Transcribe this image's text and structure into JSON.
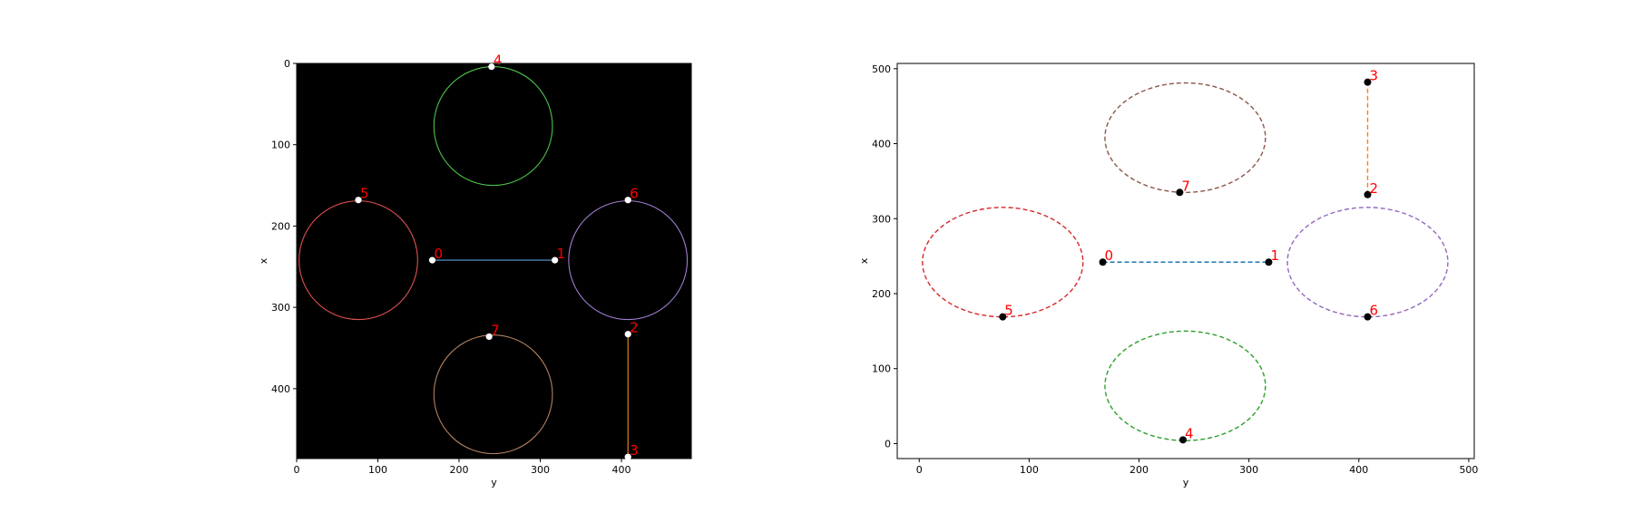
{
  "chart_data": [
    {
      "type": "scatter",
      "variant": "image-overlay",
      "background": "#000000",
      "xlabel": "y",
      "ylabel": "x",
      "xlim": [
        0,
        486
      ],
      "ylim": [
        486,
        0
      ],
      "yaxis_inverted": true,
      "xticks": [
        0,
        100,
        200,
        300,
        400
      ],
      "yticks": [
        0,
        100,
        200,
        300,
        400
      ],
      "point_color": "#ffffff",
      "label_color": "#ff0000",
      "circles": [
        {
          "name": "4",
          "cx": 242,
          "cy": 77,
          "r": 73,
          "color": "#4cc44c"
        },
        {
          "name": "5",
          "cx": 76,
          "cy": 242,
          "r": 73,
          "color": "#e0504f"
        },
        {
          "name": "6",
          "cx": 408,
          "cy": 242,
          "r": 73,
          "color": "#a07dd0"
        },
        {
          "name": "7",
          "cx": 242,
          "cy": 407,
          "r": 73,
          "color": "#b08060"
        }
      ],
      "segments": [
        {
          "from": "0",
          "to": "1",
          "color": "#5aa0d8"
        },
        {
          "from": "2",
          "to": "3",
          "color": "#f0902c"
        }
      ],
      "points": [
        {
          "label": "0",
          "x": 167,
          "y": 242
        },
        {
          "label": "1",
          "x": 318,
          "y": 242
        },
        {
          "label": "2",
          "x": 408,
          "y": 333
        },
        {
          "label": "3",
          "x": 408,
          "y": 484
        },
        {
          "label": "4",
          "x": 240,
          "y": 4
        },
        {
          "label": "5",
          "x": 76,
          "y": 168
        },
        {
          "label": "6",
          "x": 408,
          "y": 168
        },
        {
          "label": "7",
          "x": 237,
          "y": 336
        }
      ]
    },
    {
      "type": "scatter",
      "variant": "plot",
      "background": "#ffffff",
      "xlabel": "y",
      "ylabel": "x",
      "xlim": [
        -20,
        505
      ],
      "ylim": [
        -20,
        507
      ],
      "xticks": [
        0,
        100,
        200,
        300,
        400,
        500
      ],
      "yticks": [
        0,
        100,
        200,
        300,
        400,
        500
      ],
      "point_color": "#000000",
      "label_color": "#ff0000",
      "circles": [
        {
          "name": "7",
          "cx": 242,
          "cy": 408,
          "r": 73,
          "color": "#8c564b"
        },
        {
          "name": "5",
          "cx": 76,
          "cy": 242,
          "r": 73,
          "color": "#d62728"
        },
        {
          "name": "6",
          "cx": 408,
          "cy": 242,
          "r": 73,
          "color": "#9467bd"
        },
        {
          "name": "4",
          "cx": 242,
          "cy": 77,
          "r": 73,
          "color": "#2ca02c"
        }
      ],
      "segments": [
        {
          "from": "0",
          "to": "1",
          "color": "#1f77b4"
        },
        {
          "from": "2",
          "to": "3",
          "color": "#ff7f0e"
        }
      ],
      "points": [
        {
          "label": "0",
          "x": 167,
          "y": 242
        },
        {
          "label": "1",
          "x": 318,
          "y": 242
        },
        {
          "label": "2",
          "x": 408,
          "y": 332
        },
        {
          "label": "3",
          "x": 408,
          "y": 482
        },
        {
          "label": "4",
          "x": 240,
          "y": 5
        },
        {
          "label": "5",
          "x": 76,
          "y": 169
        },
        {
          "label": "6",
          "x": 408,
          "y": 169
        },
        {
          "label": "7",
          "x": 237,
          "y": 335
        }
      ]
    }
  ]
}
